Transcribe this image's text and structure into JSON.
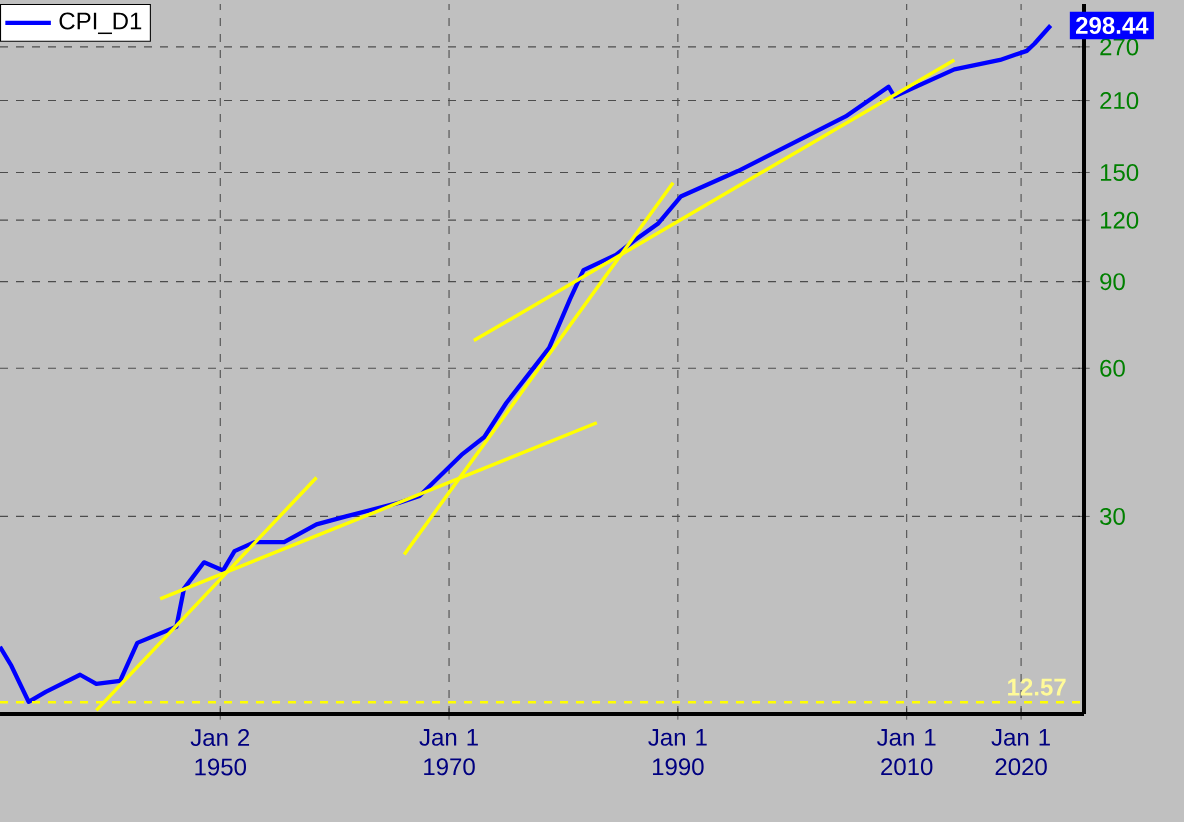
{
  "chart_data": {
    "type": "line",
    "log": "y",
    "grid": true,
    "legend": "top left",
    "marker": "none",
    "xlim": [
      "1930-10",
      "2025-07"
    ],
    "ylim": [
      11.9,
      330
    ],
    "xticks": [
      {
        "value": "1950-01-02",
        "label": "Jan 2 1950"
      },
      {
        "value": "1970-01-01",
        "label": "Jan 1 1970"
      },
      {
        "value": "1990-01-01",
        "label": "Jan 1 1990"
      },
      {
        "value": "2010-01-01",
        "label": "Jan 1 2010"
      },
      {
        "value": "2020-01-01",
        "label": "Jan 1 2020"
      }
    ],
    "yticks": [
      30,
      60,
      90,
      120,
      150,
      210,
      270
    ],
    "series": [
      {
        "name": "CPI_D1",
        "color": "#0000ff",
        "x": [
          "1930-10",
          "1931-10",
          "1933-04",
          "1934-10",
          "1937-10",
          "1939-03",
          "1941-04",
          "1942-10",
          "1946-03",
          "1946-11",
          "1948-08",
          "1950-04",
          "1951-04",
          "1953-01",
          "1955-08",
          "1958-06",
          "1961-01",
          "1965-09",
          "1967-06",
          "1971-02",
          "1973-02",
          "1975-01",
          "1978-10",
          "1980-08",
          "1981-10",
          "1984-08",
          "1986-03",
          "1988-04",
          "1990-04",
          "1995-04",
          "2000-09",
          "2004-09",
          "2008-06",
          "2008-12",
          "2014-03",
          "2018-03",
          "2020-07",
          "2021-03",
          "2022-08"
        ],
        "values": [
          16.3,
          14.9,
          12.6,
          13.2,
          14.3,
          13.7,
          13.9,
          16.6,
          17.9,
          21.4,
          24.2,
          23.3,
          25.5,
          26.6,
          26.6,
          28.9,
          30,
          32,
          33,
          40,
          43.5,
          51,
          66,
          83,
          95,
          102,
          109,
          118,
          134,
          151,
          175,
          195,
          224,
          214,
          243,
          254,
          265,
          274,
          298.44
        ]
      },
      {
        "type": "line",
        "color": "#ffff00",
        "x": [
          "1939-03",
          "1958-06"
        ],
        "values": [
          12.1,
          36
        ]
      },
      {
        "type": "line",
        "color": "#ffff00",
        "x": [
          "1944-10",
          "1982-12"
        ],
        "values": [
          20.4,
          46.5
        ]
      },
      {
        "type": "line",
        "color": "#ffff00",
        "x": [
          "1966-02",
          "1989-08"
        ],
        "values": [
          25.1,
          143
        ]
      },
      {
        "type": "line",
        "color": "#ffff00",
        "x": [
          "1972-03",
          "2014-03"
        ],
        "values": [
          68.3,
          254
        ]
      }
    ],
    "ref_lines": [
      {
        "axis": "y",
        "value": 12.57,
        "label": "12.57",
        "color": "#ffff00",
        "line_style": "dashed"
      }
    ],
    "annotations": [
      {
        "text": "298.44",
        "x": "2022-08",
        "y": 298.44
      }
    ]
  }
}
